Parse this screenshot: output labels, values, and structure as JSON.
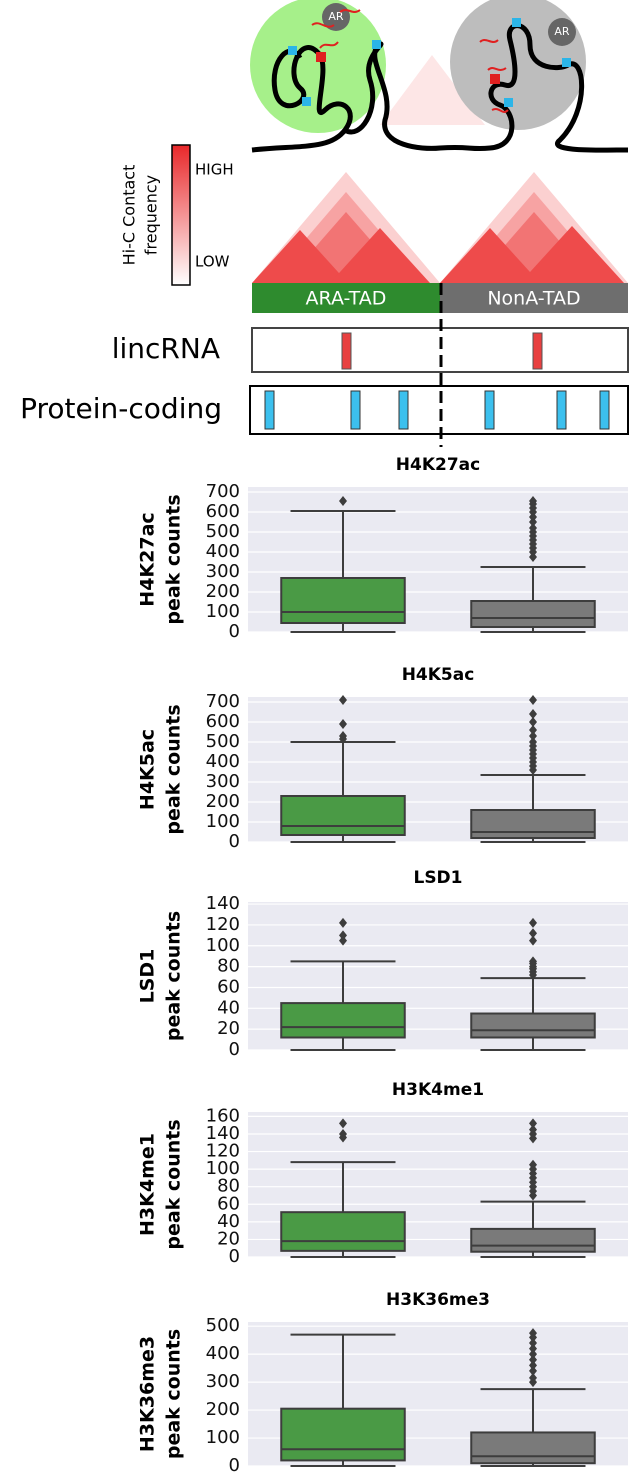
{
  "diagram": {
    "ar_labels": [
      "AR",
      "AR"
    ],
    "legend_title": [
      "Hi-C Contact",
      "frequency"
    ],
    "legend_high": "HIGH",
    "legend_low": "LOW",
    "tads": [
      "ARA-TAD",
      "NonA-TAD"
    ],
    "tracks": [
      "lincRNA",
      "Protein-coding"
    ]
  },
  "chart_data": [
    {
      "type": "box",
      "title": "H4K27ac",
      "ylabel": [
        "H4K27ac",
        "peak counts"
      ],
      "categories": [
        null,
        null
      ],
      "ylim": [
        0,
        725
      ],
      "yticks": [
        0,
        100,
        200,
        300,
        400,
        500,
        600,
        700
      ],
      "grid": true,
      "boxes": [
        {
          "color": "#4a9a45",
          "whislo": 0,
          "q1": 45,
          "med": 100,
          "q3": 270,
          "whishi": 605,
          "fliers": [
            655
          ]
        },
        {
          "color": "#7a7a7a",
          "whislo": 0,
          "q1": 25,
          "med": 70,
          "q3": 155,
          "whishi": 325,
          "fliers": [
            375,
            400,
            420,
            440,
            460,
            480,
            500,
            520,
            550,
            575,
            600,
            620,
            640,
            655
          ]
        }
      ]
    },
    {
      "type": "box",
      "title": "H4K5ac",
      "ylabel": [
        "H4K5ac",
        "peak counts"
      ],
      "categories": [
        null,
        null
      ],
      "ylim": [
        0,
        725
      ],
      "yticks": [
        0,
        100,
        200,
        300,
        400,
        500,
        600,
        700
      ],
      "grid": true,
      "boxes": [
        {
          "color": "#4a9a45",
          "whislo": 0,
          "q1": 35,
          "med": 80,
          "q3": 230,
          "whishi": 500,
          "fliers": [
            515,
            530,
            590,
            710
          ]
        },
        {
          "color": "#7a7a7a",
          "whislo": 0,
          "q1": 20,
          "med": 50,
          "q3": 160,
          "whishi": 335,
          "fliers": [
            360,
            380,
            400,
            420,
            440,
            460,
            480,
            500,
            530,
            560,
            600,
            640,
            710
          ]
        }
      ]
    },
    {
      "type": "box",
      "title": "LSD1",
      "ylabel": [
        "LSD1",
        "peak counts"
      ],
      "categories": [
        null,
        null
      ],
      "ylim": [
        0,
        142
      ],
      "yticks": [
        0,
        20,
        40,
        60,
        80,
        100,
        120,
        140
      ],
      "grid": true,
      "boxes": [
        {
          "color": "#4a9a45",
          "whislo": 0,
          "q1": 12,
          "med": 22,
          "q3": 45,
          "whishi": 85,
          "fliers": [
            105,
            110,
            122
          ]
        },
        {
          "color": "#7a7a7a",
          "whislo": 0,
          "q1": 12,
          "med": 19,
          "q3": 35,
          "whishi": 69,
          "fliers": [
            72,
            75,
            78,
            80,
            83,
            85,
            105,
            112,
            122
          ]
        }
      ]
    },
    {
      "type": "box",
      "title": "H3K4me1",
      "ylabel": [
        "H3K4me1",
        "peak counts"
      ],
      "categories": [
        null,
        null
      ],
      "ylim": [
        0,
        165
      ],
      "yticks": [
        0,
        20,
        40,
        60,
        80,
        100,
        120,
        140,
        160
      ],
      "grid": true,
      "boxes": [
        {
          "color": "#4a9a45",
          "whislo": 0,
          "q1": 7,
          "med": 18,
          "q3": 51,
          "whishi": 108,
          "fliers": [
            136,
            140,
            152
          ]
        },
        {
          "color": "#7a7a7a",
          "whislo": 0,
          "q1": 6,
          "med": 13,
          "q3": 32,
          "whishi": 63,
          "fliers": [
            70,
            75,
            80,
            85,
            90,
            95,
            100,
            105,
            135,
            140,
            145,
            152
          ]
        }
      ]
    },
    {
      "type": "box",
      "title": "H3K36me3",
      "ylabel": [
        "H3K36me3",
        "peak counts"
      ],
      "categories": [
        null,
        null
      ],
      "ylim": [
        0,
        515
      ],
      "yticks": [
        0,
        100,
        200,
        300,
        400,
        500
      ],
      "grid": true,
      "boxes": [
        {
          "color": "#4a9a45",
          "whislo": 0,
          "q1": 20,
          "med": 60,
          "q3": 205,
          "whishi": 470,
          "fliers": []
        },
        {
          "color": "#7a7a7a",
          "whislo": 0,
          "q1": 10,
          "med": 35,
          "q3": 120,
          "whishi": 275,
          "fliers": [
            300,
            315,
            340,
            360,
            380,
            400,
            420,
            440,
            460,
            475
          ]
        }
      ]
    }
  ]
}
